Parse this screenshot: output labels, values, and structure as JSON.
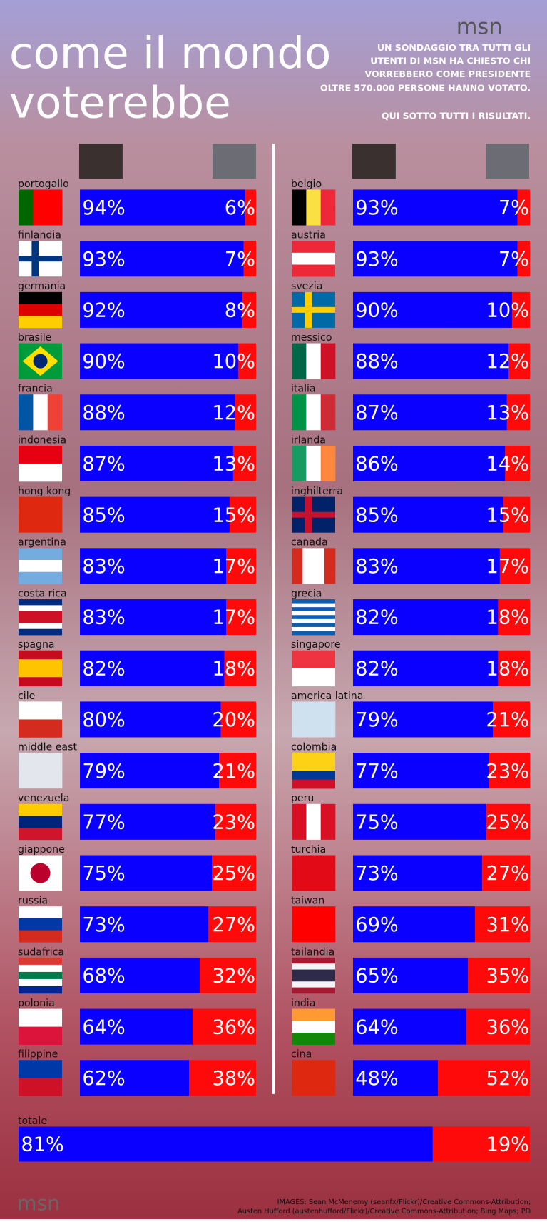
{
  "header": {
    "logo": "msn",
    "title": [
      "come il mondo",
      "voterebbe"
    ],
    "subtitle": [
      "UN SONDAGGIO TRA TUTTI GLI",
      "UTENTI DI MSN HA CHIESTO CHI",
      "VORREBBERO COME PRESIDENTE",
      "OLTRE 570.000 PERSONE HANNO VOTATO.",
      "QUI SOTTO TUTTI I RISULTATI."
    ]
  },
  "chart_data": [
    {
      "type": "bar",
      "orientation": "horizontal",
      "stacked": true,
      "xlim": [
        0,
        100
      ],
      "categories": [
        "portogallo",
        "finlandia",
        "germania",
        "brasile",
        "francia",
        "indonesia",
        "hong kong",
        "argentina",
        "costa rica",
        "spagna",
        "cile",
        "middle east",
        "venezuela",
        "giappone",
        "russia",
        "sudafrica",
        "polonia",
        "filippine"
      ],
      "series": [
        {
          "color": "#0a00ff",
          "values": [
            94,
            93,
            92,
            90,
            88,
            87,
            85,
            83,
            83,
            82,
            80,
            79,
            77,
            75,
            73,
            68,
            64,
            62
          ],
          "value_labels": [
            "94%",
            "93%",
            "92%",
            "90%",
            "88%",
            "87%",
            "85%",
            "83%",
            "83%",
            "82%",
            "80%",
            "79%",
            "77%",
            "75%",
            "73%",
            "68%",
            "64%",
            "62%"
          ]
        },
        {
          "color": "#ff0a0a",
          "values": [
            6,
            7,
            8,
            10,
            12,
            13,
            15,
            17,
            17,
            18,
            20,
            21,
            23,
            25,
            27,
            32,
            36,
            38
          ],
          "value_labels": [
            "6%",
            "7%",
            "8%",
            "10%",
            "12%",
            "13%",
            "15%",
            "17%",
            "17%",
            "18%",
            "20%",
            "21%",
            "23%",
            "25%",
            "27%",
            "32%",
            "36%",
            "38%"
          ]
        }
      ]
    },
    {
      "type": "bar",
      "orientation": "horizontal",
      "stacked": true,
      "xlim": [
        0,
        100
      ],
      "categories": [
        "belgio",
        "austria",
        "svezia",
        "messico",
        "italia",
        "irlanda",
        "inghilterra",
        "canada",
        "grecia",
        "singapore",
        "america latina",
        "colombia",
        "peru",
        "turchia",
        "taiwan",
        "tailandia",
        "india",
        "cina"
      ],
      "series": [
        {
          "color": "#0a00ff",
          "values": [
            93,
            93,
            90,
            88,
            87,
            86,
            85,
            83,
            82,
            82,
            79,
            77,
            75,
            73,
            69,
            65,
            64,
            48
          ],
          "value_labels": [
            "93%",
            "93%",
            "90%",
            "88%",
            "87%",
            "86%",
            "85%",
            "83%",
            "82%",
            "82%",
            "79%",
            "77%",
            "75%",
            "73%",
            "69%",
            "65%",
            "64%",
            "48%"
          ]
        },
        {
          "color": "#ff0a0a",
          "values": [
            7,
            7,
            10,
            12,
            13,
            14,
            15,
            17,
            18,
            18,
            21,
            23,
            25,
            27,
            31,
            35,
            36,
            52
          ],
          "value_labels": [
            "7%",
            "7%",
            "10%",
            "12%",
            "13%",
            "14%",
            "15%",
            "17%",
            "18%",
            "18%",
            "21%",
            "23%",
            "25%",
            "27%",
            "31%",
            "35%",
            "36%",
            "52%"
          ]
        }
      ]
    },
    {
      "type": "bar",
      "orientation": "horizontal",
      "stacked": true,
      "xlim": [
        0,
        100
      ],
      "categories": [
        "totale"
      ],
      "series": [
        {
          "color": "#0a00ff",
          "values": [
            81
          ],
          "value_labels": [
            "81%"
          ]
        },
        {
          "color": "#ff0a0a",
          "values": [
            19
          ],
          "value_labels": [
            "19%"
          ]
        }
      ]
    }
  ],
  "footer": {
    "logo": "msn",
    "credits": [
      "IMAGES: Sean McMenemy (seanfx/Flickr)/Creative Commons-Attribution;",
      "Austen Hufford (austenhufford/Flickr)/Creative Commons-Attribution; Bing Maps; PD"
    ]
  }
}
